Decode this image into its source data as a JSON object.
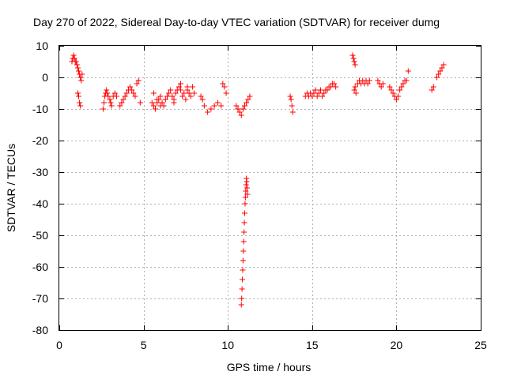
{
  "chart_data": {
    "type": "scatter",
    "title": "Day 270 of 2022, Sidereal Day-to-day VTEC variation (SDTVAR) for receiver dumg",
    "xlabel": "GPS time / hours",
    "ylabel": "SDTVAR / TECUs",
    "xlim": [
      0,
      25
    ],
    "ylim": [
      -80,
      10
    ],
    "xticks": [
      0,
      5,
      10,
      15,
      20,
      25
    ],
    "yticks": [
      10,
      0,
      -10,
      -20,
      -30,
      -40,
      -50,
      -60,
      -70,
      -80
    ],
    "xtick_labels": [
      "0",
      "5",
      "10",
      "15",
      "20",
      "25"
    ],
    "ytick_labels": [
      "10",
      "0",
      "-10",
      "-20",
      "-30",
      "-40",
      "-50",
      "-60",
      "-70",
      "-80"
    ],
    "grid": true,
    "marker": "plus",
    "marker_color": "#ff0000",
    "series": [
      {
        "name": "SDTVAR",
        "x": [
          0.75,
          0.8,
          0.85,
          0.9,
          0.95,
          1.0,
          1.05,
          1.1,
          1.15,
          1.2,
          1.25,
          1.3,
          1.35,
          1.1,
          1.15,
          1.2,
          1.25,
          2.6,
          2.65,
          2.7,
          2.75,
          2.8,
          2.85,
          2.9,
          3.0,
          3.05,
          3.1,
          3.2,
          3.3,
          3.4,
          3.6,
          3.7,
          3.8,
          3.9,
          4.0,
          4.1,
          4.2,
          4.3,
          4.4,
          4.5,
          4.6,
          4.7,
          4.8,
          5.5,
          5.6,
          5.7,
          5.8,
          5.9,
          6.0,
          6.1,
          6.2,
          6.3,
          6.4,
          6.5,
          6.6,
          6.7,
          6.8,
          6.9,
          7.0,
          7.1,
          7.2,
          7.3,
          7.4,
          7.5,
          7.6,
          7.7,
          7.8,
          7.9,
          8.0,
          5.6,
          5.8,
          6.0,
          6.4,
          6.8,
          7.2,
          7.6,
          8.4,
          8.5,
          8.6,
          8.8,
          9.0,
          9.2,
          9.4,
          9.6,
          9.7,
          9.8,
          9.9,
          10.5,
          10.6,
          10.7,
          10.8,
          10.9,
          11.0,
          11.1,
          11.2,
          11.3,
          10.8,
          10.82,
          10.84,
          10.86,
          10.88,
          10.9,
          10.92,
          10.94,
          10.96,
          10.98,
          11.0,
          11.02,
          11.04,
          11.06,
          11.08,
          11.1,
          11.12,
          11.14,
          11.16,
          13.7,
          13.75,
          13.8,
          13.85,
          14.6,
          14.7,
          14.8,
          14.9,
          15.0,
          15.1,
          15.2,
          15.3,
          15.4,
          15.5,
          15.6,
          15.7,
          15.8,
          15.9,
          16.0,
          16.1,
          16.2,
          16.3,
          16.4,
          17.4,
          17.45,
          17.5,
          17.55,
          17.6,
          17.5,
          17.55,
          17.7,
          17.8,
          17.9,
          18.0,
          18.1,
          18.2,
          18.3,
          18.4,
          18.9,
          19.0,
          19.1,
          19.2,
          19.6,
          19.7,
          19.8,
          19.9,
          20.0,
          20.1,
          20.2,
          20.3,
          20.4,
          20.5,
          20.6,
          20.7,
          22.1,
          22.2,
          22.4,
          22.5,
          22.6,
          22.7,
          22.8
        ],
        "y": [
          5,
          6,
          7,
          6,
          5,
          5,
          4,
          3,
          2,
          1,
          0,
          -1,
          1,
          -5,
          -6,
          -8,
          -9,
          -10,
          -8,
          -6,
          -5,
          -4,
          -5,
          -6,
          -7,
          -8,
          -9,
          -6,
          -5,
          -6,
          -9,
          -8,
          -7,
          -6,
          -5,
          -4,
          -3,
          -4,
          -5,
          -6,
          -2,
          -1,
          -8,
          -8,
          -9,
          -10,
          -8,
          -7,
          -6,
          -8,
          -9,
          -7,
          -6,
          -5,
          -4,
          -6,
          -7,
          -5,
          -4,
          -3,
          -2,
          -6,
          -5,
          -7,
          -4,
          -5,
          -6,
          -3,
          -5,
          -5,
          -7,
          -9,
          -6,
          -8,
          -4,
          -3,
          -6,
          -7,
          -9,
          -11,
          -10,
          -9,
          -8,
          -9,
          -2,
          -3,
          -5,
          -9,
          -10,
          -11,
          -12,
          -10,
          -9,
          -8,
          -7,
          -6,
          -72,
          -70,
          -67,
          -64,
          -61,
          -58,
          -55,
          -52,
          -49,
          -46,
          -43,
          -40,
          -38,
          -36,
          -34,
          -32,
          -33,
          -35,
          -37,
          -6,
          -7,
          -9,
          -11,
          -6,
          -5,
          -6,
          -5,
          -6,
          -5,
          -4,
          -6,
          -5,
          -4,
          -6,
          -5,
          -4,
          -4,
          -3,
          -3,
          -2,
          -2,
          -3,
          7,
          6,
          5,
          4,
          -5,
          -4,
          -3,
          -2,
          -1,
          -2,
          -1,
          -2,
          -1,
          -2,
          -1,
          -1,
          -2,
          -3,
          -2,
          -3,
          -4,
          -5,
          -6,
          -7,
          -6,
          -4,
          -3,
          -2,
          -1,
          -1,
          2,
          -4,
          -3,
          0,
          1,
          2,
          3,
          4
        ]
      }
    ]
  }
}
